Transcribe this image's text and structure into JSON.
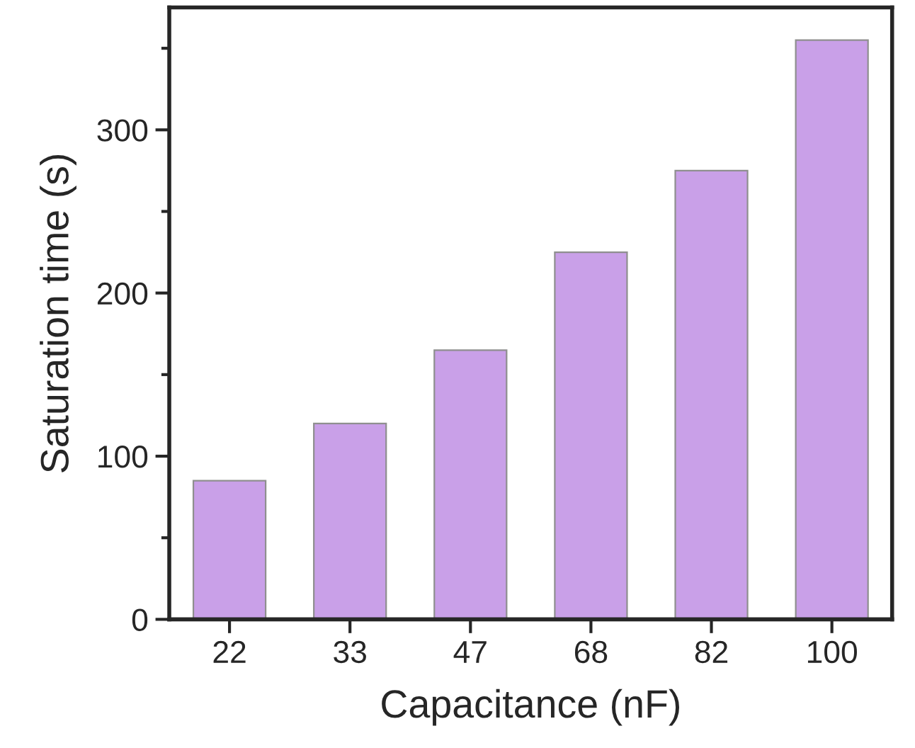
{
  "chart_data": {
    "type": "bar",
    "xlabel": "Capacitance (nF)",
    "ylabel": "Saturation time (s)",
    "categories": [
      "22",
      "33",
      "47",
      "68",
      "82",
      "100"
    ],
    "values": [
      85,
      120,
      165,
      225,
      275,
      355
    ],
    "color": "#c9a0e8",
    "ylim": [
      0,
      375
    ],
    "yticks": [
      0,
      100,
      200,
      300
    ],
    "grid": false,
    "legend": false
  }
}
